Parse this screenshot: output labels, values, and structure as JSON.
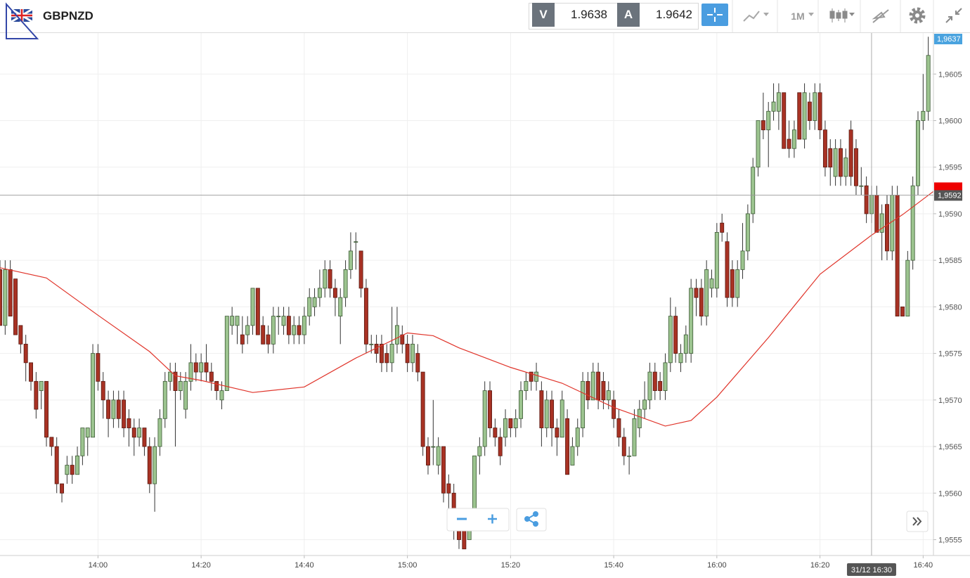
{
  "header": {
    "symbol": "GBPNZD",
    "bid_label": "V",
    "bid": "1.9638",
    "ask_label": "A",
    "ask": "1.9642",
    "timeframe": "1M"
  },
  "chart_data": {
    "type": "candlestick",
    "up_color": "#9cc48f",
    "down_color": "#a83224",
    "xlim": [
      "13:41",
      "16:42"
    ],
    "xticks": [
      "14:00",
      "14:20",
      "14:40",
      "15:00",
      "15:20",
      "15:40",
      "16:00",
      "16:20",
      "16:40"
    ],
    "ylim": [
      1.95533,
      1.96094
    ],
    "yticks": [
      {
        "value": 1.9555,
        "label": "1,9555"
      },
      {
        "value": 1.956,
        "label": "1,9560"
      },
      {
        "value": 1.9565,
        "label": "1,9565"
      },
      {
        "value": 1.957,
        "label": "1,9570"
      },
      {
        "value": 1.9575,
        "label": "1,9575"
      },
      {
        "value": 1.958,
        "label": "1,9580"
      },
      {
        "value": 1.9585,
        "label": "1,9585"
      },
      {
        "value": 1.959,
        "label": "1,9590"
      },
      {
        "value": 1.9595,
        "label": "1,9595"
      },
      {
        "value": 1.96,
        "label": "1,9600"
      },
      {
        "value": 1.9605,
        "label": "1,9605"
      }
    ],
    "grid": true,
    "last_price_label": "1,9637",
    "crosshair": {
      "time_label": "31/12 16:30",
      "price": 1.9592,
      "price_label": "1,9592"
    },
    "x": [
      "13:41",
      "13:42",
      "13:43",
      "13:44",
      "13:45",
      "13:46",
      "13:47",
      "13:48",
      "13:49",
      "13:50",
      "13:51",
      "13:52",
      "13:53",
      "13:54",
      "13:55",
      "13:56",
      "13:57",
      "13:58",
      "13:59",
      "14:00",
      "14:01",
      "14:02",
      "14:03",
      "14:04",
      "14:05",
      "14:06",
      "14:07",
      "14:08",
      "14:09",
      "14:10",
      "14:11",
      "14:12",
      "14:13",
      "14:14",
      "14:15",
      "14:16",
      "14:17",
      "14:18",
      "14:19",
      "14:20",
      "14:21",
      "14:22",
      "14:23",
      "14:24",
      "14:25",
      "14:26",
      "14:27",
      "14:28",
      "14:29",
      "14:30",
      "14:31",
      "14:32",
      "14:33",
      "14:34",
      "14:35",
      "14:36",
      "14:37",
      "14:38",
      "14:39",
      "14:40",
      "14:41",
      "14:42",
      "14:43",
      "14:44",
      "14:45",
      "14:46",
      "14:47",
      "14:48",
      "14:49",
      "14:50",
      "14:51",
      "14:52",
      "14:53",
      "14:54",
      "14:55",
      "14:56",
      "14:57",
      "14:58",
      "14:59",
      "15:00",
      "15:01",
      "15:02",
      "15:03",
      "15:04",
      "15:05",
      "15:06",
      "15:07",
      "15:08",
      "15:09",
      "15:10",
      "15:11",
      "15:12",
      "15:13",
      "15:14",
      "15:15",
      "15:16",
      "15:17",
      "15:18",
      "15:19",
      "15:20",
      "15:21",
      "15:22",
      "15:23",
      "15:24",
      "15:25",
      "15:26",
      "15:27",
      "15:28",
      "15:29",
      "15:30",
      "15:31",
      "15:32",
      "15:33",
      "15:34",
      "15:35",
      "15:36",
      "15:37",
      "15:38",
      "15:39",
      "15:40",
      "15:41",
      "15:42",
      "15:43",
      "15:44",
      "15:45",
      "15:46",
      "15:47",
      "15:48",
      "15:49",
      "15:50",
      "15:51",
      "15:52",
      "15:53",
      "15:54",
      "15:55",
      "15:56",
      "15:57",
      "15:58",
      "15:59",
      "16:00",
      "16:01",
      "16:02",
      "16:03",
      "16:04",
      "16:05",
      "16:06",
      "16:07",
      "16:08",
      "16:09",
      "16:10",
      "16:11",
      "16:12",
      "16:13",
      "16:14",
      "16:15",
      "16:16",
      "16:17",
      "16:18",
      "16:19",
      "16:20",
      "16:21",
      "16:22",
      "16:23",
      "16:24",
      "16:25",
      "16:26",
      "16:27",
      "16:28",
      "16:29",
      "16:30",
      "16:31",
      "16:32",
      "16:33",
      "16:34",
      "16:35",
      "16:36",
      "16:37",
      "16:38",
      "16:39",
      "16:40",
      "16:41"
    ],
    "candles": [
      [
        1.9584,
        1.9585,
        1.9578,
        1.9578
      ],
      [
        1.9578,
        1.9585,
        1.9577,
        1.9584
      ],
      [
        1.9584,
        1.9585,
        1.9579,
        1.9579
      ],
      [
        1.9583,
        1.9583,
        1.9577,
        1.9577
      ],
      [
        1.9578,
        1.9578,
        1.9575,
        1.9576
      ],
      [
        1.9576,
        1.9577,
        1.9572,
        1.9574
      ],
      [
        1.9574,
        1.9574,
        1.9571,
        1.9572
      ],
      [
        1.9572,
        1.9573,
        1.9568,
        1.9569
      ],
      [
        1.9571,
        1.9572,
        1.9569,
        1.9572
      ],
      [
        1.9572,
        1.9572,
        1.9565,
        1.9566
      ],
      [
        1.9566,
        1.9566,
        1.9564,
        1.9565
      ],
      [
        1.9565,
        1.9566,
        1.956,
        1.9561
      ],
      [
        1.9561,
        1.9561,
        1.9559,
        1.956
      ],
      [
        1.9562,
        1.9564,
        1.9561,
        1.9563
      ],
      [
        1.9563,
        1.9564,
        1.9561,
        1.9562
      ],
      [
        1.9562,
        1.9565,
        1.9562,
        1.9564
      ],
      [
        1.9564,
        1.9567,
        1.9563,
        1.9567
      ],
      [
        1.9566,
        1.9567,
        1.9564,
        1.9567
      ],
      [
        1.9566,
        1.9576,
        1.9566,
        1.9575
      ],
      [
        1.9575,
        1.9576,
        1.9571,
        1.9572
      ],
      [
        1.9572,
        1.9573,
        1.9568,
        1.957
      ],
      [
        1.957,
        1.9571,
        1.9566,
        1.9568
      ],
      [
        1.9568,
        1.9571,
        1.9567,
        1.957
      ],
      [
        1.957,
        1.9571,
        1.9567,
        1.9568
      ],
      [
        1.957,
        1.9571,
        1.9566,
        1.9567
      ],
      [
        1.9568,
        1.9569,
        1.9565,
        1.9567
      ],
      [
        1.9567,
        1.9568,
        1.9564,
        1.9566
      ],
      [
        1.9566,
        1.9568,
        1.9565,
        1.9567
      ],
      [
        1.9567,
        1.9567,
        1.9564,
        1.9565
      ],
      [
        1.9565,
        1.9566,
        1.956,
        1.9561
      ],
      [
        1.9561,
        1.9566,
        1.9558,
        1.9565
      ],
      [
        1.9565,
        1.9569,
        1.9564,
        1.9568
      ],
      [
        1.9568,
        1.9573,
        1.9567,
        1.9572
      ],
      [
        1.9572,
        1.9574,
        1.9571,
        1.9573
      ],
      [
        1.9573,
        1.9574,
        1.9565,
        1.9571
      ],
      [
        1.9571,
        1.9573,
        1.957,
        1.9572
      ],
      [
        1.9569,
        1.9573,
        1.9568,
        1.9572
      ],
      [
        1.9572,
        1.9576,
        1.9571,
        1.9574
      ],
      [
        1.9574,
        1.9575,
        1.9572,
        1.9573
      ],
      [
        1.9573,
        1.9575,
        1.9572,
        1.9574
      ],
      [
        1.9574,
        1.9576,
        1.9572,
        1.9573
      ],
      [
        1.9573,
        1.9574,
        1.9571,
        1.9572
      ],
      [
        1.9572,
        1.9572,
        1.957,
        1.9571
      ],
      [
        1.957,
        1.9572,
        1.9569,
        1.9571
      ],
      [
        1.9571,
        1.9579,
        1.9571,
        1.9579
      ],
      [
        1.9578,
        1.958,
        1.9577,
        1.9579
      ],
      [
        1.9578,
        1.9579,
        1.9576,
        1.9579
      ],
      [
        1.9577,
        1.9579,
        1.9575,
        1.9576
      ],
      [
        1.9577,
        1.9579,
        1.9576,
        1.9578
      ],
      [
        1.9578,
        1.9582,
        1.9577,
        1.9582
      ],
      [
        1.9582,
        1.9582,
        1.9577,
        1.9577
      ],
      [
        1.9578,
        1.9579,
        1.9576,
        1.9576
      ],
      [
        1.9577,
        1.9578,
        1.9575,
        1.9576
      ],
      [
        1.9576,
        1.958,
        1.9575,
        1.9579
      ],
      [
        1.9579,
        1.958,
        1.9577,
        1.9579
      ],
      [
        1.9578,
        1.958,
        1.9577,
        1.9579
      ],
      [
        1.9579,
        1.958,
        1.9576,
        1.9577
      ],
      [
        1.9577,
        1.9579,
        1.9576,
        1.9578
      ],
      [
        1.9578,
        1.9579,
        1.9576,
        1.9577
      ],
      [
        1.9577,
        1.958,
        1.9576,
        1.9579
      ],
      [
        1.9579,
        1.9582,
        1.9578,
        1.9581
      ],
      [
        1.958,
        1.9582,
        1.9579,
        1.9581
      ],
      [
        1.9581,
        1.9584,
        1.958,
        1.9582
      ],
      [
        1.9582,
        1.9585,
        1.9581,
        1.9584
      ],
      [
        1.9584,
        1.9585,
        1.9581,
        1.9582
      ],
      [
        1.9582,
        1.9583,
        1.9579,
        1.9581
      ],
      [
        1.9579,
        1.9582,
        1.9576,
        1.9581
      ],
      [
        1.9581,
        1.9585,
        1.958,
        1.9584
      ],
      [
        1.9584,
        1.9588,
        1.9583,
        1.9586
      ],
      [
        1.9587,
        1.9588,
        1.9584,
        1.9587
      ],
      [
        1.9586,
        1.9586,
        1.9581,
        1.9582
      ],
      [
        1.9582,
        1.9583,
        1.9575,
        1.9576
      ],
      [
        1.9576,
        1.9577,
        1.9575,
        1.9576
      ],
      [
        1.9576,
        1.9577,
        1.9574,
        1.9575
      ],
      [
        1.9576,
        1.9577,
        1.9573,
        1.9574
      ],
      [
        1.9575,
        1.9576,
        1.9573,
        1.9574
      ],
      [
        1.9574,
        1.958,
        1.9573,
        1.9576
      ],
      [
        1.9576,
        1.958,
        1.9575,
        1.9578
      ],
      [
        1.9577,
        1.9578,
        1.9575,
        1.9576
      ],
      [
        1.9576,
        1.9577,
        1.9573,
        1.9574
      ],
      [
        1.9574,
        1.9577,
        1.9573,
        1.9576
      ],
      [
        1.9575,
        1.9576,
        1.9572,
        1.9573
      ],
      [
        1.9573,
        1.9573,
        1.9564,
        1.9565
      ],
      [
        1.9565,
        1.9566,
        1.9562,
        1.9563
      ],
      [
        1.9565,
        1.957,
        1.9563,
        1.9565
      ],
      [
        1.9563,
        1.9566,
        1.9562,
        1.9565
      ],
      [
        1.9565,
        1.9565,
        1.9559,
        1.956
      ],
      [
        1.9561,
        1.9562,
        1.9558,
        1.956
      ],
      [
        1.956,
        1.9561,
        1.9555,
        1.9556
      ],
      [
        1.9557,
        1.9558,
        1.9554,
        1.9555
      ],
      [
        1.9557,
        1.9557,
        1.9554,
        1.9554
      ],
      [
        1.9555,
        1.9558,
        1.9555,
        1.9557
      ],
      [
        1.9557,
        1.9564,
        1.9556,
        1.9564
      ],
      [
        1.9564,
        1.9566,
        1.9562,
        1.9565
      ],
      [
        1.9565,
        1.9572,
        1.9564,
        1.9571
      ],
      [
        1.9571,
        1.9572,
        1.9566,
        1.9567
      ],
      [
        1.9567,
        1.9568,
        1.9565,
        1.9566
      ],
      [
        1.9566,
        1.9567,
        1.9563,
        1.9564
      ],
      [
        1.9566,
        1.9569,
        1.9565,
        1.9568
      ],
      [
        1.9568,
        1.9568,
        1.9566,
        1.9567
      ],
      [
        1.9567,
        1.9569,
        1.9566,
        1.9568
      ],
      [
        1.9568,
        1.9572,
        1.9567,
        1.9571
      ],
      [
        1.9571,
        1.9573,
        1.957,
        1.9572
      ],
      [
        1.9573,
        1.9573,
        1.9571,
        1.9572
      ],
      [
        1.9572,
        1.9574,
        1.9571,
        1.9573
      ],
      [
        1.9571,
        1.9572,
        1.9565,
        1.9567
      ],
      [
        1.9567,
        1.9571,
        1.9566,
        1.957
      ],
      [
        1.957,
        1.9571,
        1.9565,
        1.9567
      ],
      [
        1.9567,
        1.9568,
        1.9564,
        1.9566
      ],
      [
        1.9566,
        1.9571,
        1.9566,
        1.957
      ],
      [
        1.9568,
        1.9569,
        1.9562,
        1.9562
      ],
      [
        1.9563,
        1.9566,
        1.9563,
        1.9565
      ],
      [
        1.9565,
        1.9568,
        1.9564,
        1.9567
      ],
      [
        1.9567,
        1.9573,
        1.9566,
        1.9572
      ],
      [
        1.9572,
        1.9573,
        1.9569,
        1.957
      ],
      [
        1.957,
        1.9574,
        1.957,
        1.9573
      ],
      [
        1.9573,
        1.9574,
        1.9569,
        1.957
      ],
      [
        1.9572,
        1.9573,
        1.9569,
        1.957
      ],
      [
        1.957,
        1.9572,
        1.9569,
        1.9571
      ],
      [
        1.957,
        1.9571,
        1.9567,
        1.9568
      ],
      [
        1.9568,
        1.9569,
        1.9565,
        1.9566
      ],
      [
        1.9566,
        1.9567,
        1.9563,
        1.9564
      ],
      [
        1.9564,
        1.9565,
        1.9562,
        1.9564
      ],
      [
        1.9564,
        1.9569,
        1.9564,
        1.9568
      ],
      [
        1.9567,
        1.957,
        1.9566,
        1.9569
      ],
      [
        1.9569,
        1.9572,
        1.9568,
        1.957
      ],
      [
        1.957,
        1.9574,
        1.9569,
        1.9573
      ],
      [
        1.9573,
        1.9574,
        1.957,
        1.9571
      ],
      [
        1.9572,
        1.9573,
        1.957,
        1.9571
      ],
      [
        1.9571,
        1.9575,
        1.957,
        1.9574
      ],
      [
        1.9574,
        1.9581,
        1.9573,
        1.9579
      ],
      [
        1.9579,
        1.958,
        1.9574,
        1.9575
      ],
      [
        1.9574,
        1.9576,
        1.9573,
        1.9575
      ],
      [
        1.9575,
        1.9578,
        1.9574,
        1.9577
      ],
      [
        1.9575,
        1.9583,
        1.9574,
        1.9582
      ],
      [
        1.9582,
        1.9583,
        1.9579,
        1.9581
      ],
      [
        1.9582,
        1.9583,
        1.9578,
        1.9579
      ],
      [
        1.9579,
        1.9585,
        1.9578,
        1.9584
      ],
      [
        1.9582,
        1.9584,
        1.9581,
        1.9583
      ],
      [
        1.9582,
        1.9589,
        1.9581,
        1.9588
      ],
      [
        1.9589,
        1.959,
        1.9587,
        1.9588
      ],
      [
        1.9587,
        1.9588,
        1.958,
        1.9581
      ],
      [
        1.9584,
        1.9585,
        1.958,
        1.9581
      ],
      [
        1.9581,
        1.9585,
        1.958,
        1.9584
      ],
      [
        1.9584,
        1.9589,
        1.9583,
        1.9586
      ],
      [
        1.9586,
        1.9591,
        1.9585,
        1.959
      ],
      [
        1.959,
        1.9596,
        1.9589,
        1.9595
      ],
      [
        1.9595,
        1.96,
        1.9594,
        1.96
      ],
      [
        1.96,
        1.9603,
        1.9598,
        1.9599
      ],
      [
        1.9599,
        1.9602,
        1.9595,
        1.9601
      ],
      [
        1.9601,
        1.9604,
        1.96,
        1.9602
      ],
      [
        1.9601,
        1.9604,
        1.9599,
        1.9603
      ],
      [
        1.9603,
        1.9603,
        1.9597,
        1.9597
      ],
      [
        1.9598,
        1.96,
        1.9596,
        1.9597
      ],
      [
        1.9597,
        1.96,
        1.9596,
        1.9599
      ],
      [
        1.9603,
        1.9603,
        1.9598,
        1.9598
      ],
      [
        1.9598,
        1.9604,
        1.9597,
        1.9603
      ],
      [
        1.9602,
        1.9603,
        1.9599,
        1.96
      ],
      [
        1.96,
        1.9604,
        1.9599,
        1.9603
      ],
      [
        1.9603,
        1.9604,
        1.9598,
        1.9599
      ],
      [
        1.9599,
        1.96,
        1.9594,
        1.9595
      ],
      [
        1.9597,
        1.9598,
        1.9593,
        1.9595
      ],
      [
        1.9594,
        1.9598,
        1.9593,
        1.9597
      ],
      [
        1.9597,
        1.9598,
        1.9593,
        1.9594
      ],
      [
        1.9594,
        1.9597,
        1.9593,
        1.9596
      ],
      [
        1.9599,
        1.96,
        1.9593,
        1.9594
      ],
      [
        1.9597,
        1.9598,
        1.9592,
        1.9593
      ],
      [
        1.9593,
        1.9595,
        1.9592,
        1.9593
      ],
      [
        1.9593,
        1.9594,
        1.9589,
        1.959
      ],
      [
        1.959,
        1.9593,
        1.9589,
        1.9592
      ],
      [
        1.9592,
        1.9593,
        1.9588,
        1.9588
      ],
      [
        1.9588,
        1.9591,
        1.9585,
        1.959
      ],
      [
        1.9591,
        1.9592,
        1.9585,
        1.9586
      ],
      [
        1.9586,
        1.9593,
        1.9585,
        1.9592
      ],
      [
        1.9592,
        1.9593,
        1.9579,
        1.9579
      ],
      [
        1.958,
        1.958,
        1.9579,
        1.9579
      ],
      [
        1.9579,
        1.9586,
        1.9579,
        1.9585
      ],
      [
        1.9585,
        1.9594,
        1.9584,
        1.9593
      ],
      [
        1.9593,
        1.9601,
        1.9592,
        1.96
      ],
      [
        1.96,
        1.9605,
        1.9599,
        1.9601
      ],
      [
        1.9601,
        1.9609,
        1.96,
        1.9607
      ]
    ],
    "ma": {
      "color": "#e0342a",
      "x": [
        "13:41",
        "13:50",
        "14:00",
        "14:10",
        "14:15",
        "14:20",
        "14:30",
        "14:40",
        "14:50",
        "15:00",
        "15:05",
        "15:10",
        "15:20",
        "15:30",
        "15:40",
        "15:50",
        "15:55",
        "16:00",
        "16:10",
        "16:20",
        "16:30",
        "16:36",
        "16:42"
      ],
      "values": [
        1.95842,
        1.95831,
        1.95791,
        1.95752,
        1.95726,
        1.95721,
        1.95708,
        1.95714,
        1.95745,
        1.95772,
        1.95769,
        1.95756,
        1.95735,
        1.95718,
        1.95692,
        1.95672,
        1.95678,
        1.95703,
        1.95767,
        1.95835,
        1.95877,
        1.95899,
        1.95924
      ]
    }
  }
}
